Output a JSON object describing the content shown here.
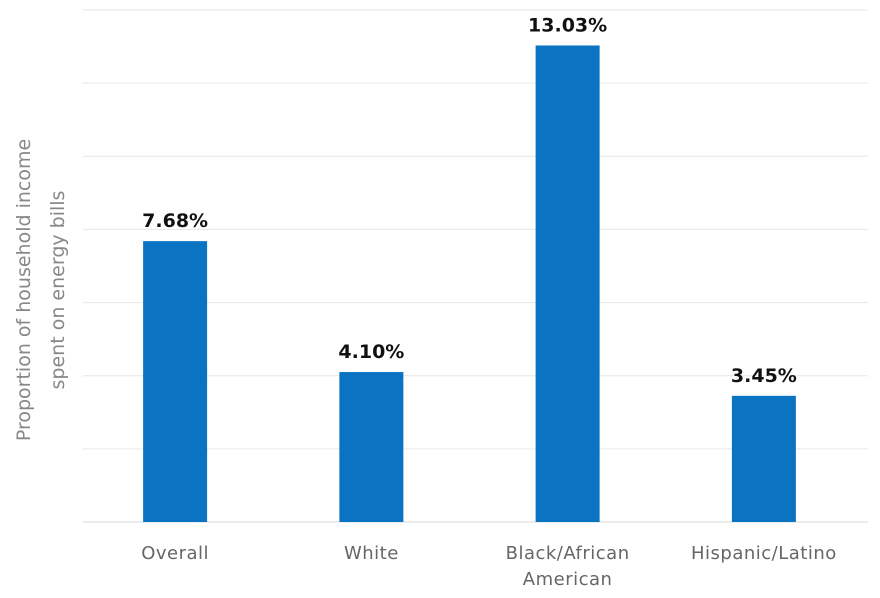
{
  "chart_data": {
    "type": "bar",
    "categories": [
      "Overall",
      "White",
      "Black/African American",
      "Hispanic/Latino"
    ],
    "category_lines": [
      [
        "Overall"
      ],
      [
        "White"
      ],
      [
        "Black/African",
        "American"
      ],
      [
        "Hispanic/Latino"
      ]
    ],
    "values": [
      7.68,
      4.1,
      13.03,
      3.45
    ],
    "data_labels": [
      "7.68%",
      "4.10%",
      "13.03%",
      "3.45%"
    ],
    "ylabel_lines": [
      "Proportion of household income",
      "spent on energy bills"
    ],
    "ylim": [
      0,
      14
    ],
    "grid": true,
    "legend": "none",
    "bar_color": "#0b74c2",
    "grid_color": "#e6e6e6"
  }
}
